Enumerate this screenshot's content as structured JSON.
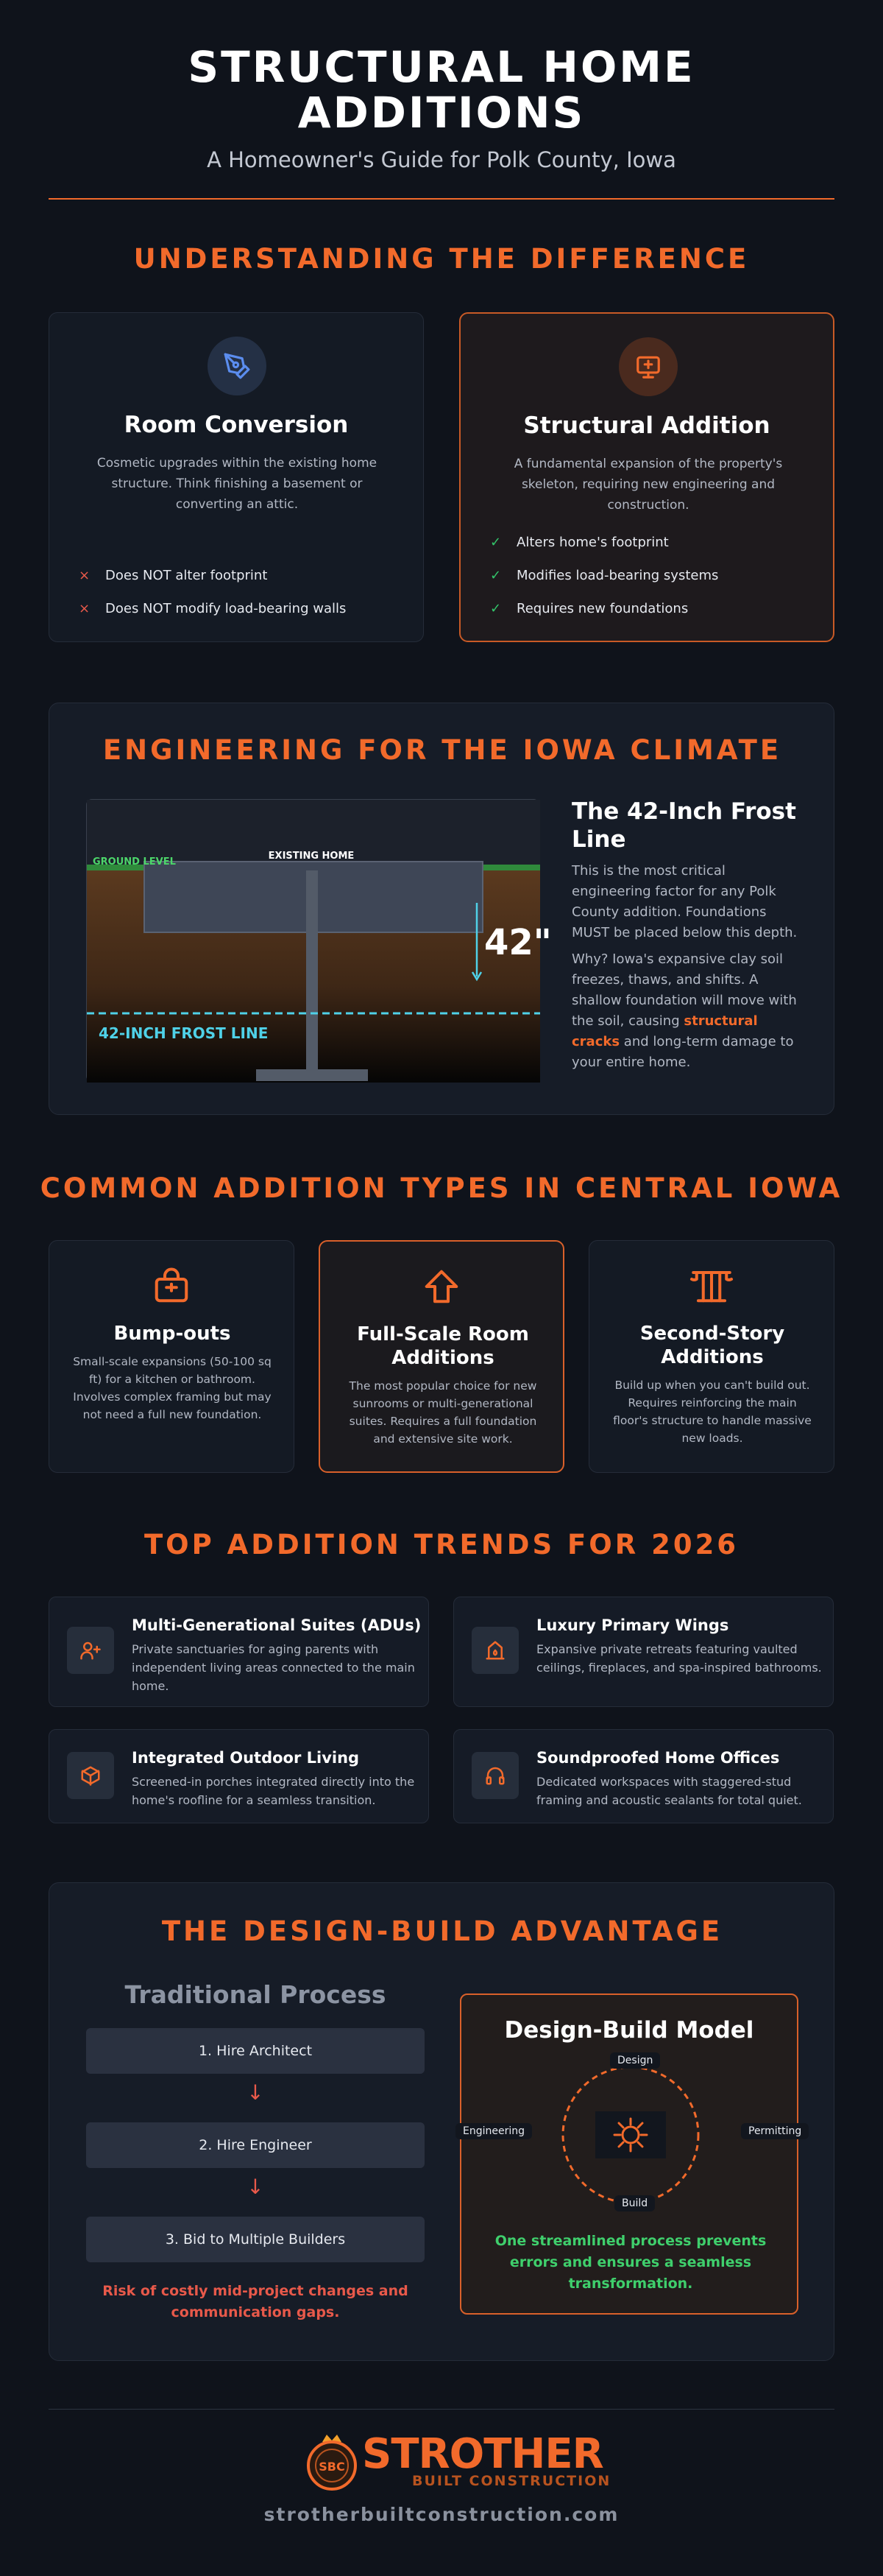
{
  "header": {
    "title_line1": "STRUCTURAL HOME",
    "title_line2": "ADDITIONS",
    "subtitle": "A Homeowner's Guide for Polk County, Iowa"
  },
  "section_difference": {
    "title": "UNDERSTANDING THE DIFFERENCE",
    "room_conversion": {
      "icon": "pen-nib-icon",
      "title": "Room Conversion",
      "description": "Cosmetic upgrades within the existing home structure. Think finishing a basement or converting an attic.",
      "items": [
        "Does NOT alter footprint",
        "Does NOT modify load-bearing walls"
      ],
      "marker": "×"
    },
    "structural_addition": {
      "icon": "monitor-icon",
      "title": "Structural Addition",
      "description": "A fundamental expansion of the property's skeleton, requiring new engineering and construction.",
      "items": [
        "Alters home's footprint",
        "Modifies load-bearing systems",
        "Requires new foundations"
      ],
      "marker": "✓"
    }
  },
  "section_climate": {
    "title": "ENGINEERING FOR THE IOWA CLIMATE",
    "diagram": {
      "ground_label": "GROUND LEVEL",
      "house_label": "EXISTING HOME",
      "depth_label": "42\"",
      "frost_label": "42-INCH FROST LINE"
    },
    "heading": "The 42-Inch Frost Line",
    "paragraph1": "This is the most critical engineering factor for any Polk County addition. Foundations MUST be placed below this depth.",
    "paragraph2_before": "Why? Iowa's expansive clay soil freezes, thaws, and shifts. A shallow foundation will move with the soil, causing ",
    "paragraph2_highlight": "structural cracks",
    "paragraph2_after": " and long-term damage to your entire home."
  },
  "section_types": {
    "title": "COMMON ADDITION TYPES IN CENTRAL IOWA",
    "cards": [
      {
        "icon": "shopping-bag-icon",
        "title": "Bump-outs",
        "description": "Small-scale expansions (50-100 sq ft) for a kitchen or bathroom. Involves complex framing but may not need a full new foundation."
      },
      {
        "icon": "arrow-up-icon",
        "title": "Full-Scale Room Additions",
        "description": "The most popular choice for new sunrooms or multi-generational suites. Requires a full foundation and extensive site work."
      },
      {
        "icon": "column-icon",
        "title": "Second-Story Additions",
        "description": "Build up when you can't build out. Requires reinforcing the main floor's structure to handle massive new loads."
      }
    ]
  },
  "section_trends": {
    "title": "TOP ADDITION TRENDS FOR 2026",
    "cards": [
      {
        "icon": "user-plus-icon",
        "title": "Multi-Generational Suites (ADUs)",
        "description": "Private sanctuaries for aging parents with independent living areas connected to the main home."
      },
      {
        "icon": "fireplace-icon",
        "title": "Luxury Primary Wings",
        "description": "Expansive private retreats featuring vaulted ceilings, fireplaces, and spa-inspired bathrooms."
      },
      {
        "icon": "cube-icon",
        "title": "Integrated Outdoor Living",
        "description": "Screened-in porches integrated directly into the home's roofline for a seamless transition."
      },
      {
        "icon": "headphones-icon",
        "title": "Soundproofed Home Offices",
        "description": "Dedicated workspaces with staggered-stud framing and acoustic sealants for total quiet."
      }
    ]
  },
  "section_design_build": {
    "title": "THE DESIGN-BUILD ADVANTAGE",
    "traditional": {
      "heading": "Traditional Process",
      "steps": [
        "1. Hire Architect",
        "2. Hire Engineer",
        "3. Bid to Multiple Builders"
      ],
      "arrow": "↓",
      "warning": "Risk of costly mid-project changes and communication gaps."
    },
    "model": {
      "heading": "Design-Build Model",
      "nodes": [
        "Design",
        "Engineering",
        "Permitting",
        "Build"
      ],
      "center_icon": "sun-icon",
      "message": "One streamlined process prevents errors and ensures a seamless transformation."
    }
  },
  "footer": {
    "logo_word": "STROTHER",
    "logo_sub": "BUILT CONSTRUCTION",
    "logo_badge": "SBC",
    "url": "strotherbuiltconstruction.com"
  },
  "colors": {
    "accent": "#f26a2b",
    "background": "#0f131b",
    "card": "#141a24",
    "success": "#33c46a",
    "danger": "#e8594a",
    "frost": "#4fd1e8"
  }
}
